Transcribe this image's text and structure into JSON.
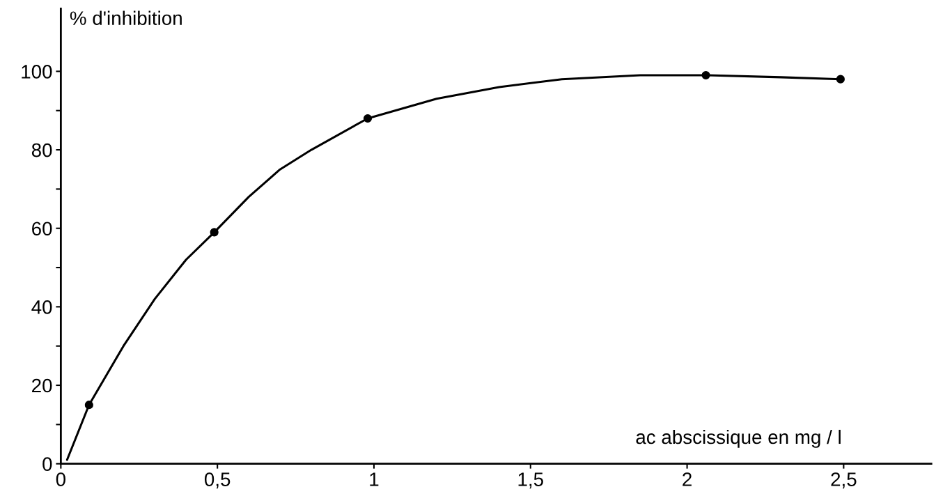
{
  "chart_data": {
    "type": "scatter",
    "xlabel": "ac abscissique en mg / l",
    "ylabel": "% d'inhibition",
    "xlim": [
      0,
      2.78
    ],
    "ylim": [
      0,
      116
    ],
    "xticks": [
      0,
      {
        "value": 0.5,
        "label": "0,5"
      },
      1,
      {
        "value": 1.5,
        "label": "1,5"
      },
      2,
      {
        "value": 2.5,
        "label": "2,5"
      }
    ],
    "yticks": [
      0,
      {
        "value": 10,
        "label": null
      },
      20,
      {
        "value": 30,
        "label": null
      },
      40,
      {
        "value": 50,
        "label": null
      },
      60,
      {
        "value": 70,
        "label": null
      },
      80,
      {
        "value": 90,
        "label": null
      },
      100
    ],
    "grid": false,
    "series": [
      {
        "type": "line",
        "color": "#000000",
        "marker": "none",
        "line_style": "solid",
        "x": [
          0.02,
          0.09,
          0.2,
          0.3,
          0.4,
          0.49,
          0.6,
          0.7,
          0.8,
          0.98,
          1.2,
          1.4,
          1.6,
          1.85,
          2.06,
          2.3,
          2.49
        ],
        "values": [
          1,
          15,
          30,
          42,
          52,
          59,
          68,
          75,
          80,
          88,
          93,
          96,
          98,
          99,
          99,
          98.5,
          98
        ]
      },
      {
        "color": "#000000",
        "marker": "circle",
        "x": [
          0.09,
          0.49,
          0.98,
          2.06,
          2.49
        ],
        "values": [
          15,
          59,
          88,
          99,
          98
        ]
      }
    ]
  }
}
